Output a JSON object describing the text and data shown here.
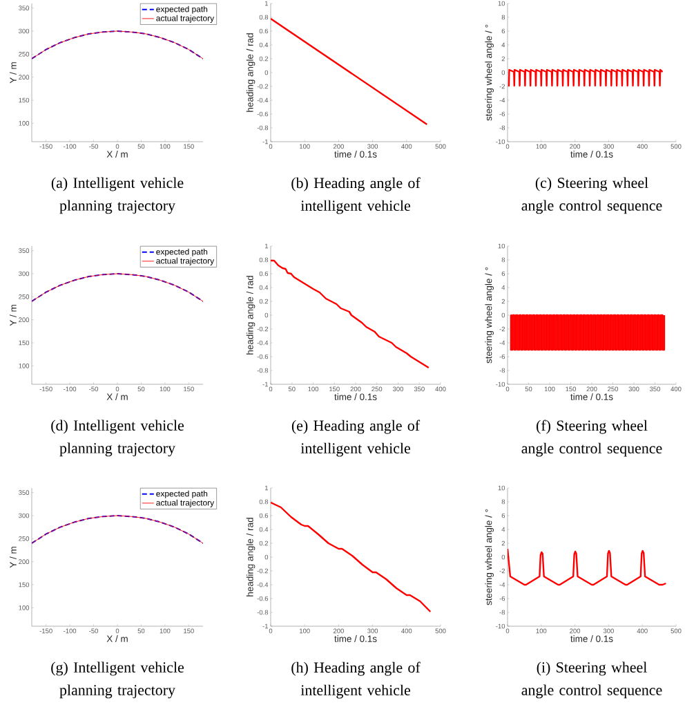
{
  "chart_data": [
    {
      "type": "line",
      "title": "(a) Intelligent vehicle planning trajectory",
      "xlabel": "X / m",
      "ylabel": "Y / m",
      "xlim": [
        -180,
        180
      ],
      "ylim": [
        60,
        360
      ],
      "xticks": [
        -150,
        -100,
        -50,
        0,
        50,
        100,
        150
      ],
      "yticks": [
        100,
        150,
        200,
        250,
        300,
        350
      ],
      "legend": "top right",
      "x": [
        -180,
        -150,
        -120,
        -90,
        -60,
        -30,
        0,
        30,
        60,
        90,
        120,
        150,
        180
      ],
      "series": [
        {
          "name": "expected path",
          "color": "#0000ff",
          "line_style": "dashed",
          "values": [
            240,
            260,
            275,
            286,
            294,
            298,
            300,
            298,
            294,
            286,
            275,
            260,
            240
          ]
        },
        {
          "name": "actual trajectory",
          "color": "#ff0000",
          "values": [
            240,
            260,
            275,
            286,
            294,
            298,
            300,
            298,
            294,
            286,
            275,
            260,
            240
          ]
        }
      ]
    },
    {
      "type": "line",
      "title": "(b) Heading angle of intelligent vehicle",
      "xlabel": "time / 0.1s",
      "ylabel": "heading angle / rad",
      "xlim": [
        0,
        500
      ],
      "ylim": [
        -1,
        1
      ],
      "xticks": [
        0,
        100,
        200,
        300,
        400,
        500
      ],
      "yticks": [
        -1,
        -0.8,
        -0.6,
        -0.4,
        -0.2,
        0,
        0.2,
        0.4,
        0.6,
        0.8,
        1
      ],
      "series": [
        {
          "color": "#ff0000",
          "x": [
            0,
            460
          ],
          "values": [
            0.78,
            -0.75
          ]
        }
      ]
    },
    {
      "type": "line",
      "title": "(c) Steering wheel angle control sequence",
      "xlabel": "time / 0.1s",
      "ylabel": "steering wheel angle / °",
      "xlim": [
        0,
        500
      ],
      "ylim": [
        -10,
        10
      ],
      "xticks": [
        0,
        100,
        200,
        300,
        400,
        500
      ],
      "yticks": [
        -10,
        -8,
        -6,
        -4,
        -2,
        0,
        2,
        4,
        6,
        8,
        10
      ],
      "series": [
        {
          "color": "#ff0000",
          "x": [
            4,
            5,
            19,
            20,
            21,
            35,
            36,
            37,
            51,
            52,
            53,
            67,
            68,
            69,
            83,
            84,
            85,
            99,
            100,
            101,
            115,
            116,
            117,
            131,
            132,
            133,
            147,
            148,
            149,
            163,
            164,
            165,
            179,
            180,
            181,
            195,
            196,
            197,
            211,
            212,
            213,
            227,
            228,
            229,
            243,
            244,
            245,
            259,
            260,
            261,
            275,
            276,
            277,
            291,
            292,
            293,
            307,
            308,
            309,
            323,
            324,
            325,
            339,
            340,
            341,
            355,
            356,
            357,
            371,
            372,
            373,
            387,
            388,
            389,
            403,
            404,
            405,
            419,
            420,
            421,
            435,
            436,
            437,
            451,
            452,
            453,
            460
          ],
          "values": [
            -2.0,
            0.4,
            0.1,
            -1.9,
            0.4,
            0.1,
            -1.9,
            0.4,
            0.1,
            -1.9,
            0.4,
            0.1,
            -1.9,
            0.4,
            0.1,
            -1.9,
            0.4,
            0.1,
            -1.9,
            0.4,
            0.1,
            -1.9,
            0.4,
            0.1,
            -1.9,
            0.4,
            0.1,
            -1.9,
            0.4,
            0.1,
            -1.9,
            0.4,
            0.1,
            -1.9,
            0.4,
            0.1,
            -1.9,
            0.4,
            0.1,
            -1.9,
            0.4,
            0.1,
            -1.9,
            0.4,
            0.1,
            -1.9,
            0.4,
            0.1,
            -1.9,
            0.4,
            0.1,
            -1.9,
            0.4,
            0.1,
            -1.9,
            0.4,
            0.1,
            -1.9,
            0.4,
            0.1,
            -1.9,
            0.4,
            0.1,
            -1.9,
            0.4,
            0.1,
            -1.9,
            0.4,
            0.1,
            -1.9,
            0.4,
            0.1,
            -1.9,
            0.4,
            0.1,
            -1.9,
            0.4,
            0.1,
            -1.9,
            0.4,
            0.1,
            -1.9,
            0.4,
            0.1,
            -1.9,
            0.4,
            0.1
          ]
        }
      ]
    },
    {
      "type": "line",
      "title": "(d) Intelligent vehicle planning trajectory",
      "xlabel": "X / m",
      "ylabel": "Y / m",
      "xlim": [
        -180,
        180
      ],
      "ylim": [
        60,
        360
      ],
      "xticks": [
        -150,
        -100,
        -50,
        0,
        50,
        100,
        150
      ],
      "yticks": [
        100,
        150,
        200,
        250,
        300,
        350
      ],
      "legend": "top right",
      "x": [
        -180,
        -150,
        -120,
        -90,
        -60,
        -30,
        0,
        30,
        60,
        90,
        120,
        150,
        180
      ],
      "series": [
        {
          "name": "expected path",
          "color": "#0000ff",
          "line_style": "dashed",
          "values": [
            240,
            260,
            275,
            286,
            294,
            298,
            300,
            298,
            294,
            286,
            275,
            260,
            240
          ]
        },
        {
          "name": "actual trajectory",
          "color": "#ff0000",
          "values": [
            240,
            260,
            275,
            286,
            294,
            298,
            300,
            298,
            294,
            286,
            275,
            260,
            240
          ]
        }
      ]
    },
    {
      "type": "line",
      "title": "(e) Heading angle of intelligent vehicle",
      "xlabel": "time / 0.1s",
      "ylabel": "heading angle / rad",
      "xlim": [
        0,
        400
      ],
      "ylim": [
        -1,
        1
      ],
      "xticks": [
        0,
        50,
        100,
        150,
        200,
        250,
        300,
        350,
        400
      ],
      "yticks": [
        -1,
        -0.8,
        -0.6,
        -0.4,
        -0.2,
        0,
        0.2,
        0.4,
        0.6,
        0.8,
        1
      ],
      "series": [
        {
          "color": "#ff0000",
          "x": [
            0,
            8,
            18,
            28,
            35,
            40,
            48,
            55,
            100,
            115,
            130,
            155,
            165,
            185,
            190,
            215,
            225,
            245,
            255,
            285,
            295,
            320,
            330,
            372
          ],
          "values": [
            0.79,
            0.79,
            0.72,
            0.68,
            0.67,
            0.61,
            0.6,
            0.55,
            0.38,
            0.33,
            0.24,
            0.16,
            0.1,
            0.05,
            0.0,
            -0.11,
            -0.17,
            -0.24,
            -0.31,
            -0.4,
            -0.46,
            -0.55,
            -0.6,
            -0.76
          ]
        }
      ]
    },
    {
      "type": "line",
      "title": "(f) Steering wheel angle control sequence",
      "xlabel": "time / 0.1s",
      "ylabel": "steering wheel angle / °",
      "xlim": [
        0,
        400
      ],
      "ylim": [
        -10,
        10
      ],
      "xticks": [
        0,
        50,
        100,
        150,
        200,
        250,
        300,
        350,
        400
      ],
      "yticks": [
        -10,
        -8,
        -6,
        -4,
        -2,
        0,
        2,
        4,
        6,
        8,
        10
      ],
      "series": [
        {
          "type": "step",
          "color": "#ff0000",
          "x": [
            7,
            8,
            12,
            16,
            20,
            24,
            28,
            32,
            36,
            40,
            44,
            48,
            52,
            56,
            60,
            64,
            68,
            72,
            76,
            80,
            84,
            88,
            92,
            96,
            100,
            104,
            108,
            112,
            116,
            120,
            124,
            128,
            132,
            136,
            140,
            144,
            148,
            152,
            156,
            160,
            164,
            168,
            172,
            176,
            180,
            184,
            188,
            192,
            196,
            200,
            204,
            208,
            212,
            216,
            220,
            224,
            228,
            232,
            236,
            240,
            244,
            248,
            252,
            256,
            260,
            264,
            268,
            272,
            276,
            280,
            284,
            288,
            292,
            296,
            300,
            304,
            308,
            312,
            316,
            320,
            324,
            328,
            332,
            336,
            340,
            344,
            348,
            352,
            356,
            360,
            364,
            368,
            372
          ],
          "values": [
            0,
            -5,
            0,
            -5,
            0,
            -5,
            0,
            -5,
            0,
            -5,
            0,
            -5,
            0,
            -5,
            0,
            -5,
            0,
            -5,
            0,
            -5,
            0,
            -5,
            0,
            -5,
            0,
            -5,
            0,
            -5,
            0,
            -5,
            0,
            -5,
            0,
            -5,
            0,
            -5,
            0,
            -5,
            0,
            -5,
            0,
            -5,
            0,
            -5,
            0,
            -5,
            0,
            -5,
            0,
            -5,
            0,
            -5,
            0,
            -5,
            0,
            -5,
            0,
            -5,
            0,
            -5,
            0,
            -5,
            0,
            -5,
            0,
            -5,
            0,
            -5,
            0,
            -5,
            0,
            -5,
            0,
            -5,
            0,
            -5,
            0,
            -5,
            0,
            -5,
            0,
            -5,
            0,
            -5,
            0,
            -5,
            0,
            -5,
            0,
            -5,
            0,
            -5,
            0
          ]
        }
      ]
    },
    {
      "type": "line",
      "title": "(g) Intelligent vehicle planning trajectory",
      "xlabel": "X / m",
      "ylabel": "Y / m",
      "xlim": [
        -180,
        180
      ],
      "ylim": [
        60,
        360
      ],
      "xticks": [
        -150,
        -100,
        -50,
        0,
        50,
        100,
        150
      ],
      "yticks": [
        100,
        150,
        200,
        250,
        300,
        350
      ],
      "legend": "top right",
      "x": [
        -180,
        -150,
        -120,
        -90,
        -60,
        -30,
        0,
        30,
        60,
        90,
        120,
        150,
        180
      ],
      "series": [
        {
          "name": "expected path",
          "color": "#0000ff",
          "line_style": "dashed",
          "values": [
            240,
            260,
            275,
            286,
            294,
            298,
            300,
            298,
            294,
            286,
            275,
            260,
            240
          ]
        },
        {
          "name": "actual trajectory",
          "color": "#ff0000",
          "values": [
            240,
            260,
            275,
            286,
            294,
            298,
            300,
            298,
            294,
            286,
            275,
            260,
            240
          ]
        }
      ]
    },
    {
      "type": "line",
      "title": "(h) Heading angle of intelligent vehicle",
      "xlabel": "time / 0.1s",
      "ylabel": "heading angle / rad",
      "xlim": [
        0,
        500
      ],
      "ylim": [
        -1,
        1
      ],
      "xticks": [
        0,
        100,
        200,
        300,
        400,
        500
      ],
      "yticks": [
        -1,
        -0.8,
        -0.6,
        -0.4,
        -0.2,
        0,
        0.2,
        0.4,
        0.6,
        0.8,
        1
      ],
      "series": [
        {
          "color": "#ff0000",
          "x": [
            0,
            30,
            60,
            90,
            100,
            110,
            140,
            170,
            200,
            210,
            240,
            270,
            300,
            310,
            340,
            370,
            400,
            410,
            440,
            470
          ],
          "values": [
            0.79,
            0.72,
            0.58,
            0.47,
            0.45,
            0.45,
            0.33,
            0.2,
            0.12,
            0.12,
            0.02,
            -0.11,
            -0.22,
            -0.22,
            -0.32,
            -0.45,
            -0.55,
            -0.55,
            -0.64,
            -0.79
          ]
        }
      ]
    },
    {
      "type": "line",
      "title": "(i) Steering wheel angle control sequence",
      "xlabel": "time / 0.1s",
      "ylabel": "steering wheel angle / °",
      "xlim": [
        0,
        500
      ],
      "ylim": [
        -10,
        10
      ],
      "xticks": [
        0,
        100,
        200,
        300,
        400,
        500
      ],
      "yticks": [
        -10,
        -8,
        -6,
        -4,
        -2,
        0,
        2,
        4,
        6,
        8,
        10
      ],
      "series": [
        {
          "color": "#ff0000",
          "x": [
            0,
            8,
            50,
            55,
            95,
            98,
            101,
            104,
            108,
            150,
            155,
            195,
            198,
            201,
            204,
            208,
            250,
            255,
            295,
            298,
            301,
            304,
            308,
            350,
            355,
            395,
            398,
            401,
            404,
            408,
            450,
            460,
            470
          ],
          "values": [
            1.2,
            -2.8,
            -4.0,
            -4.0,
            -2.8,
            0.3,
            0.7,
            0.5,
            -2.8,
            -4.0,
            -4.0,
            -2.8,
            0.4,
            0.8,
            0.5,
            -2.8,
            -4.0,
            -4.0,
            -2.8,
            0.5,
            0.9,
            0.6,
            -2.8,
            -4.0,
            -4.0,
            -2.8,
            0.5,
            0.9,
            0.6,
            -2.8,
            -4.0,
            -4.0,
            -3.8
          ]
        }
      ]
    }
  ]
}
